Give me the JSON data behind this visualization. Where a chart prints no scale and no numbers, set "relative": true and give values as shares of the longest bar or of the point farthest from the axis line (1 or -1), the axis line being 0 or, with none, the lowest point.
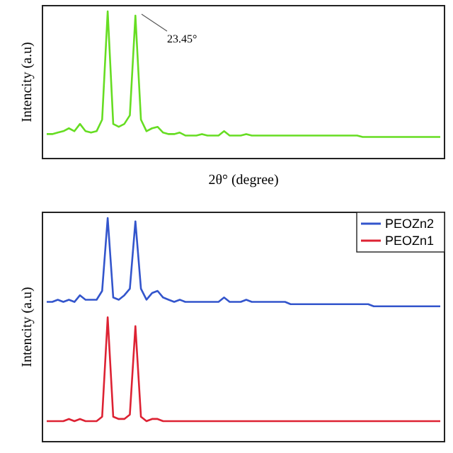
{
  "chart_data": [
    {
      "type": "line",
      "relative": true,
      "xlabel": "2θ° (degree)",
      "ylabel": "Intencity (a.u)",
      "annotations": [
        "23.45°"
      ],
      "categories": [
        null,
        null,
        null,
        null,
        null,
        null,
        null,
        null,
        null,
        null,
        null,
        null,
        null,
        null,
        null,
        null,
        null,
        null,
        null,
        null,
        null,
        null,
        null,
        null,
        null,
        null,
        null,
        null,
        null,
        null,
        null,
        null,
        null,
        null,
        null,
        null,
        null,
        null,
        null,
        null,
        null,
        null,
        null,
        null,
        null,
        null,
        null,
        null,
        null,
        null,
        null,
        null,
        null,
        null,
        null,
        null,
        null,
        null,
        null,
        null,
        null,
        null,
        null,
        null,
        null,
        null,
        null,
        null,
        null,
        null,
        null,
        null
      ],
      "series": [
        {
          "color": "#66dd22",
          "values": [
            0.15,
            0.15,
            0.16,
            0.17,
            0.19,
            0.17,
            0.22,
            0.17,
            0.16,
            0.17,
            0.25,
            1,
            0.22,
            0.2,
            0.22,
            0.28,
            0.97,
            0.25,
            0.17,
            0.19,
            0.2,
            0.16,
            0.15,
            0.15,
            0.16,
            0.14,
            0.14,
            0.14,
            0.15,
            0.14,
            0.14,
            0.14,
            0.17,
            0.14,
            0.14,
            0.14,
            0.15,
            0.14,
            0.14,
            0.14,
            0.14,
            0.14,
            0.14,
            0.14,
            0.14,
            0.14,
            0.14,
            0.14,
            0.14,
            0.14,
            0.14,
            0.14,
            0.14,
            0.14,
            0.14,
            0.14,
            0.14,
            0.13,
            0.13,
            0.13,
            0.13,
            0.13,
            0.13,
            0.13,
            0.13,
            0.13,
            0.13,
            0.13,
            0.13,
            0.13,
            0.13,
            0.13
          ]
        }
      ]
    },
    {
      "type": "line",
      "relative": true,
      "ylabel": "Intencity (a.u)",
      "legend": "top right",
      "categories": [
        null,
        null,
        null,
        null,
        null,
        null,
        null,
        null,
        null,
        null,
        null,
        null,
        null,
        null,
        null,
        null,
        null,
        null,
        null,
        null,
        null,
        null,
        null,
        null,
        null,
        null,
        null,
        null,
        null,
        null,
        null,
        null,
        null,
        null,
        null,
        null,
        null,
        null,
        null,
        null,
        null,
        null,
        null,
        null,
        null,
        null,
        null,
        null,
        null,
        null,
        null,
        null,
        null,
        null,
        null,
        null,
        null,
        null,
        null,
        null,
        null,
        null,
        null,
        null,
        null,
        null,
        null,
        null,
        null,
        null,
        null,
        null
      ],
      "series": [
        {
          "name": "PEOZn2",
          "color": "#3355cc",
          "values": [
            0.62,
            0.62,
            0.63,
            0.62,
            0.63,
            0.62,
            0.65,
            0.63,
            0.63,
            0.63,
            0.67,
            1,
            0.64,
            0.63,
            0.65,
            0.68,
            0.985,
            0.68,
            0.63,
            0.66,
            0.67,
            0.64,
            0.63,
            0.62,
            0.63,
            0.62,
            0.62,
            0.62,
            0.62,
            0.62,
            0.62,
            0.62,
            0.64,
            0.62,
            0.62,
            0.62,
            0.63,
            0.62,
            0.62,
            0.62,
            0.62,
            0.62,
            0.62,
            0.62,
            0.61,
            0.61,
            0.61,
            0.61,
            0.61,
            0.61,
            0.61,
            0.61,
            0.61,
            0.61,
            0.61,
            0.61,
            0.61,
            0.61,
            0.61,
            0.6,
            0.6,
            0.6,
            0.6,
            0.6,
            0.6,
            0.6,
            0.6,
            0.6,
            0.6,
            0.6,
            0.6,
            0.6
          ]
        },
        {
          "name": "PEOZn1",
          "color": "#dd2233",
          "values": [
            0.08,
            0.08,
            0.08,
            0.08,
            0.09,
            0.08,
            0.09,
            0.08,
            0.08,
            0.08,
            0.1,
            0.55,
            0.1,
            0.09,
            0.09,
            0.11,
            0.51,
            0.1,
            0.08,
            0.09,
            0.09,
            0.08,
            0.08,
            0.08,
            0.08,
            0.08,
            0.08,
            0.08,
            0.08,
            0.08,
            0.08,
            0.08,
            0.08,
            0.08,
            0.08,
            0.08,
            0.08,
            0.08,
            0.08,
            0.08,
            0.08,
            0.08,
            0.08,
            0.08,
            0.08,
            0.08,
            0.08,
            0.08,
            0.08,
            0.08,
            0.08,
            0.08,
            0.08,
            0.08,
            0.08,
            0.08,
            0.08,
            0.08,
            0.08,
            0.08,
            0.08,
            0.08,
            0.08,
            0.08,
            0.08,
            0.08,
            0.08,
            0.08,
            0.08,
            0.08,
            0.08,
            0.08
          ]
        }
      ]
    }
  ]
}
